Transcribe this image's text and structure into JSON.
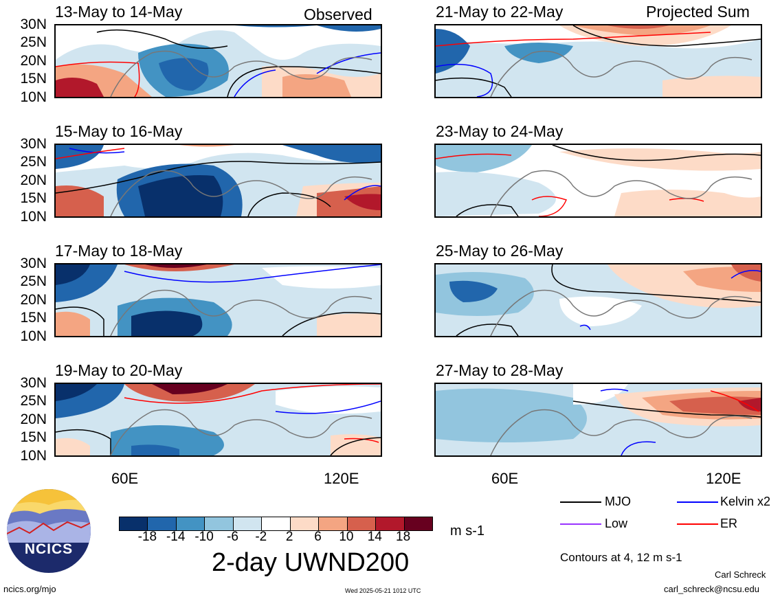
{
  "left_tag": "Observed",
  "right_tag": "Projected Sum",
  "lat_labels": [
    "30N",
    "25N",
    "20N",
    "15N",
    "10N"
  ],
  "lon_labels": [
    "60E",
    "120E"
  ],
  "panels": [
    {
      "title": "13-May to 14-May"
    },
    {
      "title": "15-May to 16-May"
    },
    {
      "title": "17-May to 18-May"
    },
    {
      "title": "19-May to 20-May"
    },
    {
      "title": "21-May to 22-May"
    },
    {
      "title": "23-May to 24-May"
    },
    {
      "title": "25-May to 26-May"
    },
    {
      "title": "27-May to 28-May"
    }
  ],
  "colorbar": {
    "labels": [
      "-18",
      "-14",
      "-10",
      "-6",
      "-2",
      "2",
      "6",
      "10",
      "14",
      "18"
    ],
    "colors": [
      "#08306b",
      "#2166ac",
      "#4393c3",
      "#92c5de",
      "#d1e5f0",
      "#ffffff",
      "#fddbc7",
      "#f4a582",
      "#d6604d",
      "#b2182b",
      "#67001f"
    ],
    "units": "m s-1",
    "name": "2-day UWND200"
  },
  "legend": {
    "items": [
      {
        "label": "MJO",
        "color": "#000000"
      },
      {
        "label": "Kelvin x2",
        "color": "#0000ff"
      },
      {
        "label": "Low",
        "color": "#9933ff"
      },
      {
        "label": "ER",
        "color": "#ff0000"
      }
    ],
    "contours_note": "Contours at 4, 12 m s-1"
  },
  "logo_text": "NCICS",
  "footer": {
    "url": "ncics.org/mjo",
    "timestamp": "Wed 2025-05-21 1012 UTC",
    "author": "Carl Schreck",
    "email": "carl_schreck@ncsu.edu"
  }
}
